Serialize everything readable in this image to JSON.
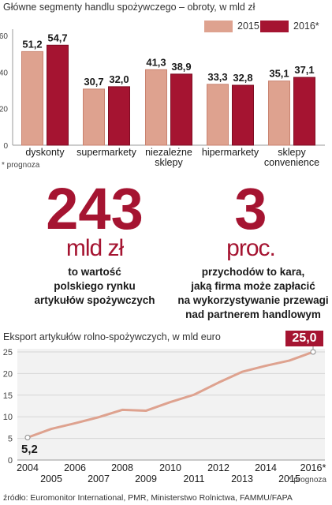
{
  "top_chart": {
    "title": "Główne segmenty handlu spożywczego – obroty, w mld zł",
    "footnote": "* prognoza",
    "legend": [
      {
        "label": "2015",
        "color": "#dea28f"
      },
      {
        "label": "2016*",
        "color": "#a51431"
      }
    ]
  },
  "stats": [
    {
      "value": "243",
      "unit": "mld zł",
      "lines": [
        "to wartość",
        "polskiego rynku",
        "artykułów spożywczych"
      ]
    },
    {
      "value": "3",
      "unit": "proc.",
      "lines": [
        "przychodów to  kara,",
        "jaką firma może zapłacić",
        "na wykorzystywanie przewagi",
        "nad partnerem handlowym"
      ]
    }
  ],
  "export_chart": {
    "title": "Eksport artykułów rolno-spożywczych, w mld euro",
    "final_label": "25,0",
    "first_label": "5,2",
    "footnote": "* prognoza"
  },
  "source": "źródło: Euromonitor International, PMR, Ministerstwo Rolnictwa, FAMMU/FAPA",
  "chart_data": [
    {
      "type": "bar",
      "title": "Główne segmenty handlu spożywczego – obroty, w mld zł",
      "categories": [
        [
          "dyskonty"
        ],
        [
          "supermarkety"
        ],
        [
          "niezależne",
          "sklepy"
        ],
        [
          "hipermarkety"
        ],
        [
          "sklepy",
          "convenience"
        ]
      ],
      "series": [
        {
          "name": "2015",
          "values": [
            51.2,
            30.7,
            41.3,
            33.3,
            35.1
          ],
          "labels": [
            "51,2",
            "30,7",
            "41,3",
            "33,3",
            "35,1"
          ]
        },
        {
          "name": "2016*",
          "values": [
            54.7,
            32.0,
            38.9,
            32.8,
            37.1
          ],
          "labels": [
            "54,7",
            "32,0",
            "38,9",
            "32,8",
            "37,1"
          ]
        }
      ],
      "ylim": [
        0,
        60
      ],
      "yticks": [
        0,
        20,
        40,
        60
      ],
      "grid": false,
      "legend": "top-right"
    },
    {
      "type": "line",
      "title": "Eksport artykułów rolno-spożywczych, w mld euro",
      "x": [
        "2004",
        "2005",
        "2006",
        "2007",
        "2008",
        "2009",
        "2010",
        "2011",
        "2012",
        "2013",
        "2014",
        "2015",
        "2016*"
      ],
      "series": [
        {
          "values": [
            5.2,
            7.2,
            8.5,
            9.9,
            11.6,
            11.4,
            13.4,
            15.1,
            17.9,
            20.4,
            21.8,
            23.0,
            25.0
          ]
        }
      ],
      "ylim": [
        0,
        25
      ],
      "yticks": [
        0,
        5,
        10,
        15,
        20,
        25
      ],
      "grid": true
    }
  ]
}
